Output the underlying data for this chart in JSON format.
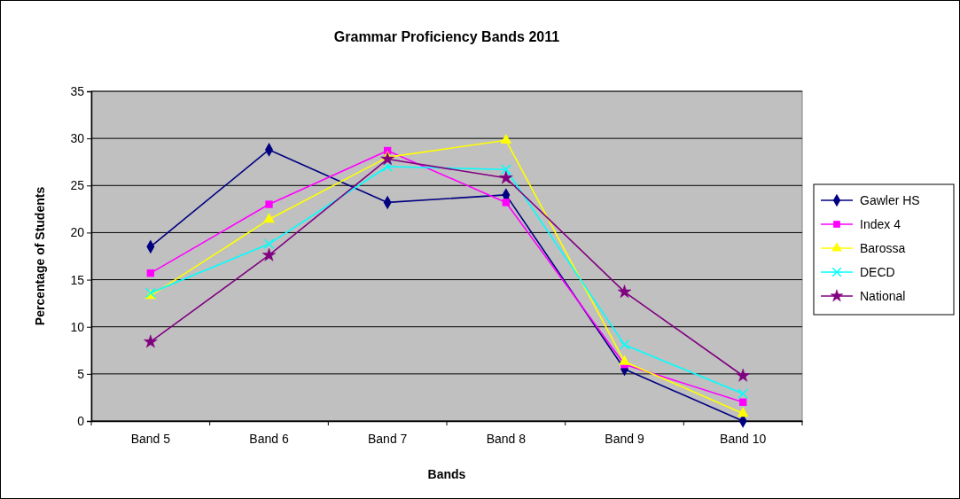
{
  "chart_data": {
    "type": "line",
    "title": "Grammar Proficiency Bands 2011",
    "xlabel": "Bands",
    "ylabel": "Percentage of Students",
    "categories": [
      "Band 5",
      "Band 6",
      "Band 7",
      "Band 8",
      "Band 9",
      "Band 10"
    ],
    "series": [
      {
        "name": "Gawler HS",
        "color": "#000080",
        "marker": "diamond",
        "values": [
          18.5,
          28.8,
          23.2,
          24,
          5.5,
          0
        ]
      },
      {
        "name": "Index 4",
        "color": "#ff00ff",
        "marker": "square",
        "values": [
          15.7,
          23,
          28.7,
          23.2,
          6,
          2
        ]
      },
      {
        "name": "Barossa",
        "color": "#ffff00",
        "marker": "triangle",
        "values": [
          13.3,
          21.4,
          28,
          29.8,
          6.3,
          0.8
        ]
      },
      {
        "name": "DECD",
        "color": "#00ffff",
        "marker": "cross",
        "values": [
          13.6,
          18.8,
          27,
          26.7,
          8.1,
          2.9
        ]
      },
      {
        "name": "National",
        "color": "#800080",
        "marker": "star",
        "values": [
          8.4,
          17.6,
          27.8,
          25.8,
          13.7,
          4.8
        ]
      }
    ],
    "ylim": [
      0,
      35
    ],
    "yticks": [
      0,
      5,
      10,
      15,
      20,
      25,
      30,
      35
    ],
    "grid": "y",
    "legend": "right"
  }
}
